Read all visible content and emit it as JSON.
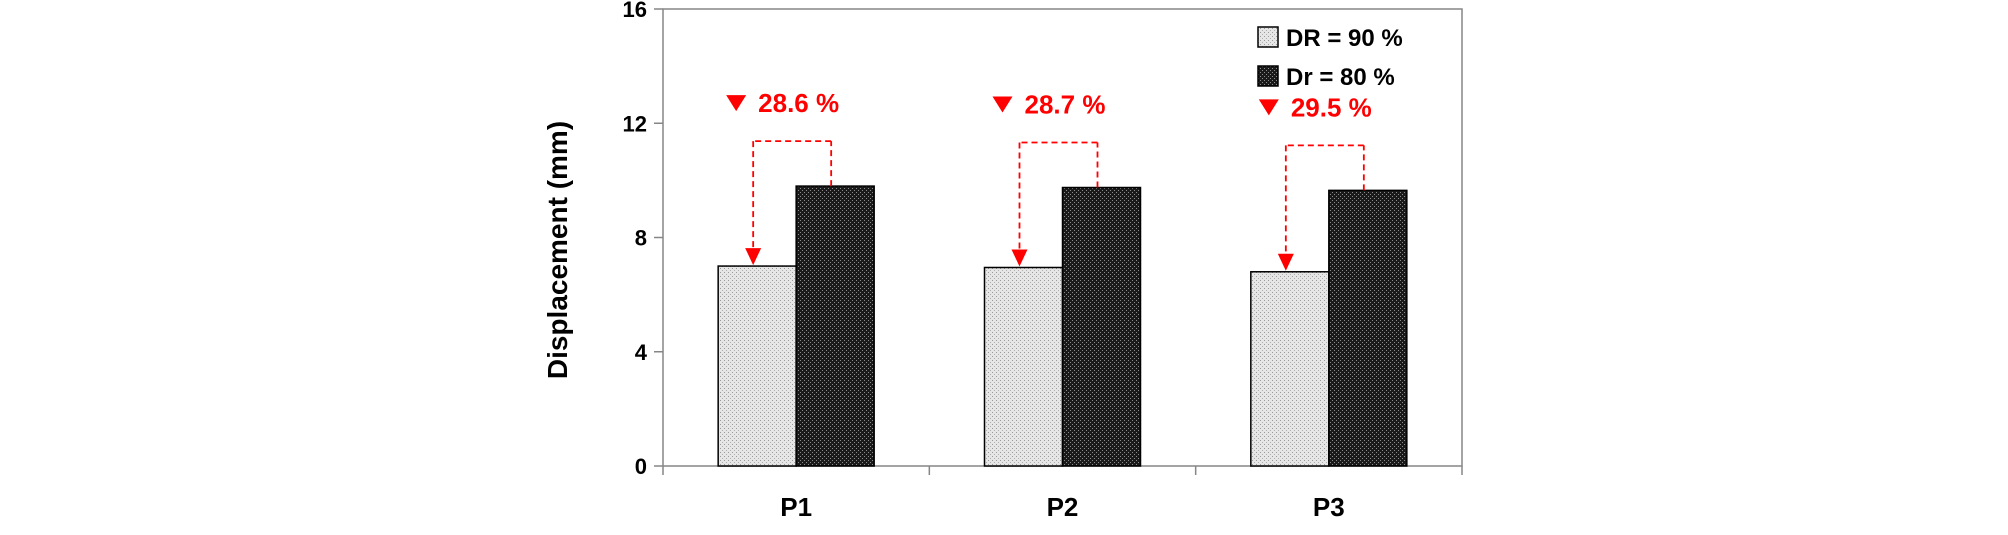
{
  "chart_data": {
    "type": "bar",
    "categories": [
      "P1",
      "P2",
      "P3"
    ],
    "series": [
      {
        "name": "DR = 90 %",
        "values": [
          7.0,
          6.95,
          6.8
        ],
        "color": "#d9d9d9",
        "pattern": "light-dots"
      },
      {
        "name": "Dr = 80 %",
        "values": [
          9.8,
          9.75,
          9.65
        ],
        "color": "#262626",
        "pattern": "dark-crosshatch"
      }
    ],
    "annotations": [
      {
        "category": "P1",
        "text": "28.6 %"
      },
      {
        "category": "P2",
        "text": "28.7 %"
      },
      {
        "category": "P3",
        "text": "29.5 %"
      }
    ],
    "annotation_color": "#ff0000",
    "title": "",
    "xlabel": "",
    "ylabel": "Displacement (mm)",
    "ylim": [
      0,
      16
    ],
    "yticks": [
      "0",
      "4",
      "8",
      "12",
      "16"
    ],
    "grid": false,
    "legend_position": "top-right"
  }
}
